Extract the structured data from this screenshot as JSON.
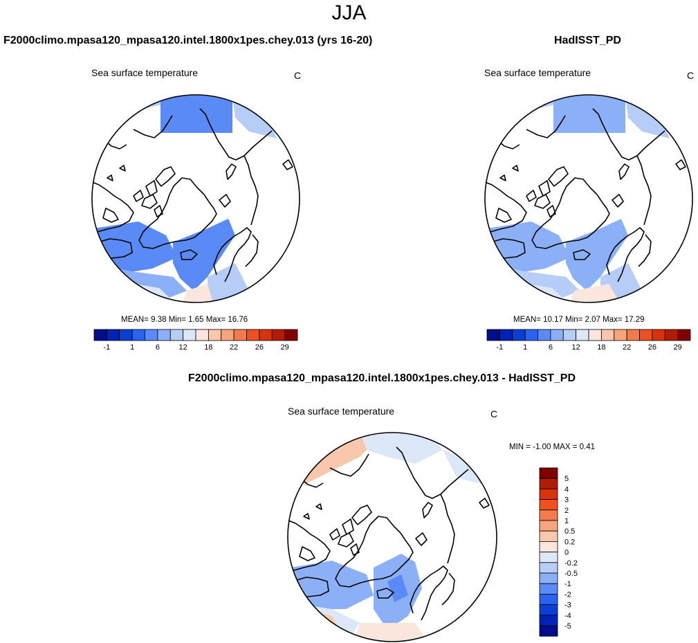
{
  "season": "JJA",
  "panels": [
    {
      "title": "F2000climo.mpasa120_mpasa120.intel.1800x1pes.chey.013 (yrs 16-20)",
      "variable": "Sea surface temperature",
      "units": "C",
      "stats": {
        "mean": "9.38",
        "min": "1.65",
        "max": "16.76"
      },
      "stats_text": "MEAN=  9.38  Min=  1.65  Max=  16.76"
    },
    {
      "title": "HadISST_PD",
      "variable": "Sea surface temperature",
      "units": "C",
      "stats": {
        "mean": "10.17",
        "min": "2.07",
        "max": "17.29"
      },
      "stats_text": "MEAN=  10.17  Min=  2.07  Max=  17.29"
    },
    {
      "title": "F2000climo.mpasa120_mpasa120.intel.1800x1pes.chey.013 - HadISST_PD",
      "variable": "Sea surface temperature",
      "units": "C",
      "stats": {
        "min": "-1.00",
        "max": "0.41"
      },
      "stats_text": "MIN =  -1.00 MAX =  0.41"
    }
  ],
  "colorbar_horizontal": {
    "labels": [
      "-1",
      "1",
      "6",
      "12",
      "18",
      "22",
      "26",
      "29"
    ],
    "colors": [
      "#000e8c",
      "#0022b8",
      "#0a3fd6",
      "#2a63f0",
      "#5a8af5",
      "#8cb0f7",
      "#b6cdf7",
      "#dce8f8",
      "#fbe6dd",
      "#f9c7ac",
      "#f7a57d",
      "#f57a4b",
      "#f0501f",
      "#d9330e",
      "#b01c06",
      "#800000"
    ]
  },
  "colorbar_vertical": {
    "labels": [
      "5",
      "4",
      "3",
      "2",
      "1",
      "0.5",
      "0.2",
      "0",
      "-0.2",
      "-0.5",
      "-1",
      "-2",
      "-3",
      "-4",
      "-5"
    ],
    "colors": [
      "#800000",
      "#b01c06",
      "#d9330e",
      "#f0501f",
      "#f57a4b",
      "#f7a57d",
      "#f9c7ac",
      "#fbe6dd",
      "#dce8f8",
      "#b6cdf7",
      "#8cb0f7",
      "#5a8af5",
      "#2a63f0",
      "#0a3fd6",
      "#0022b8",
      "#000e8c"
    ]
  }
}
